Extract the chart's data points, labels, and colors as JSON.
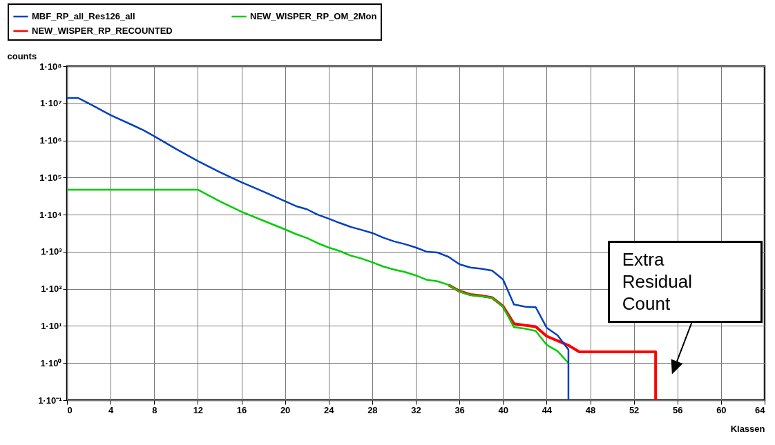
{
  "chart_data": {
    "type": "line",
    "xlabel": "Klassen",
    "ylabel": "counts",
    "xlim": [
      0,
      64
    ],
    "xticks": [
      0,
      4,
      8,
      12,
      16,
      20,
      24,
      28,
      32,
      36,
      40,
      44,
      48,
      52,
      56,
      60,
      64
    ],
    "ylim": [
      0.1,
      100000000
    ],
    "yticks": [
      {
        "value": 0.1,
        "label": "1·10⁻¹"
      },
      {
        "value": 1,
        "label": "1·10⁰"
      },
      {
        "value": 10,
        "label": "1·10¹"
      },
      {
        "value": 100,
        "label": "1·10²"
      },
      {
        "value": 1000,
        "label": "1·10³"
      },
      {
        "value": 10000,
        "label": "1·10⁴"
      },
      {
        "value": 100000,
        "label": "1·10⁵"
      },
      {
        "value": 1000000,
        "label": "1·10⁶"
      },
      {
        "value": 10000000,
        "label": "1·10⁷"
      },
      {
        "value": 100000000,
        "label": "1·10⁸"
      }
    ],
    "log": "y",
    "grid": true,
    "legend": "top",
    "marker": "none",
    "annotations": [
      "Extra Residual Count"
    ],
    "series": [
      {
        "name": "MBF_RP_all_Res126_all",
        "color": "#0040c0",
        "x": [
          0,
          1,
          2,
          4,
          6,
          7,
          8,
          10,
          12,
          14,
          16,
          18,
          20,
          21,
          22,
          23,
          24,
          25,
          26,
          27,
          28,
          29,
          30,
          31,
          32,
          33,
          34,
          35,
          36,
          37,
          38,
          39,
          40,
          41,
          42,
          43,
          44,
          45,
          46,
          46
        ],
        "values": [
          14000000,
          14000000,
          10000000,
          4800000,
          2600000,
          1900000,
          1300000,
          590000,
          280000,
          140000,
          75000,
          42000,
          23000,
          17000,
          14000,
          10000,
          7800,
          6000,
          4700,
          3900,
          3200,
          2400,
          1900,
          1600,
          1300,
          1000,
          950,
          730,
          460,
          375,
          350,
          310,
          180,
          38,
          33,
          32,
          9,
          5.6,
          2.3,
          0.1
        ]
      },
      {
        "name": "NEW_WISPER_RP_OM_2Mon",
        "color": "#00cc00",
        "x": [
          0,
          12,
          14,
          16,
          18,
          20,
          21,
          22,
          23,
          24,
          25,
          26,
          27,
          28,
          29,
          30,
          31,
          32,
          33,
          34,
          35,
          36,
          37,
          38,
          39,
          40,
          41,
          42,
          43,
          44,
          45,
          46
        ],
        "values": [
          47000,
          47000,
          23000,
          12000,
          6900,
          4000,
          3000,
          2350,
          1700,
          1300,
          1050,
          790,
          660,
          520,
          400,
          330,
          285,
          230,
          175,
          160,
          128,
          85,
          68,
          63,
          57,
          33,
          9.3,
          8.5,
          7.3,
          3.1,
          2.1,
          1
        ]
      },
      {
        "name": "NEW_WISPER_RP_RECOUNTED",
        "color": "#ff0000",
        "x": [
          35,
          36,
          37,
          38,
          39,
          40,
          41,
          42,
          43,
          44,
          45,
          46,
          47,
          54,
          54
        ],
        "values": [
          128,
          87,
          70,
          65,
          58,
          34,
          11.5,
          10.4,
          9.6,
          5.3,
          4.0,
          3.0,
          2,
          2,
          0.1
        ]
      }
    ]
  }
}
